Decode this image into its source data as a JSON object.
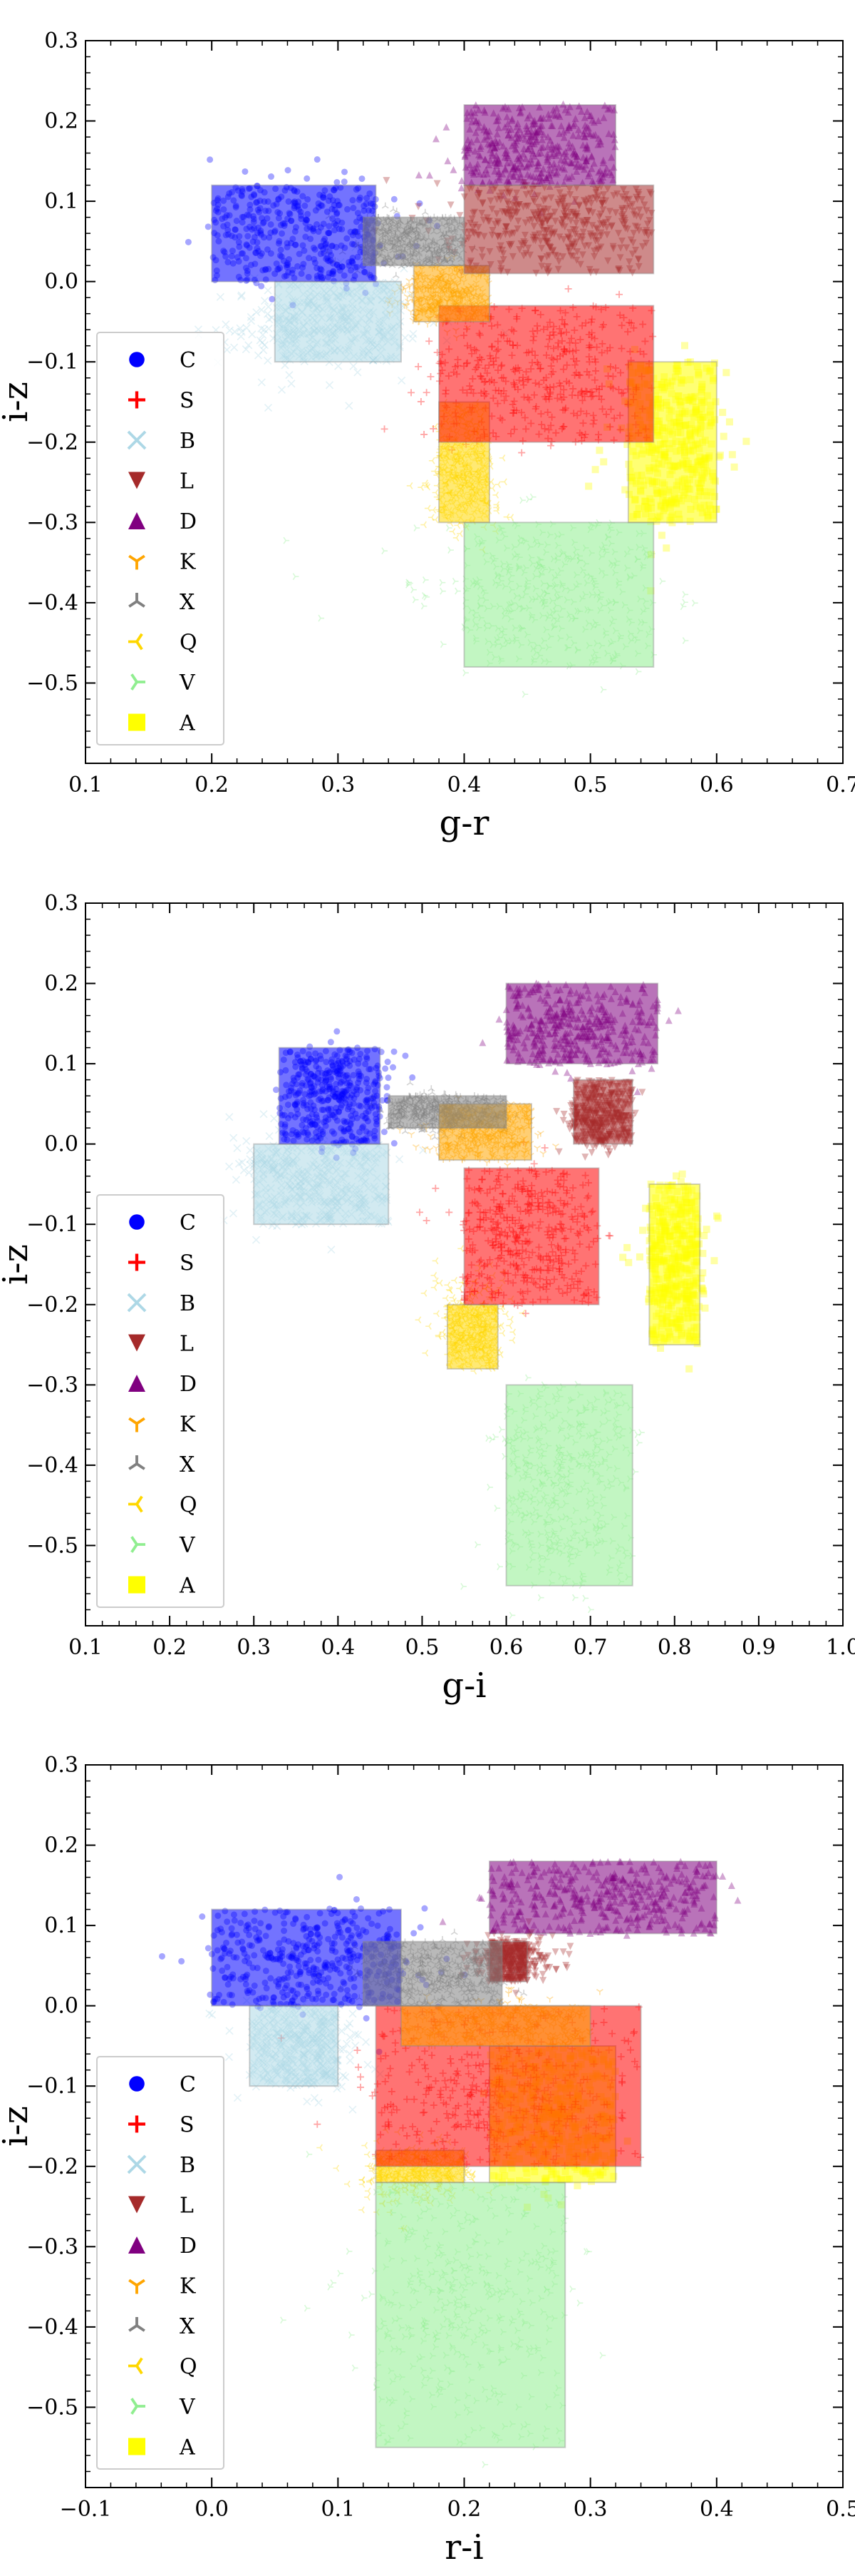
{
  "legend_items": [
    {
      "label": "C",
      "color": "#0000ff",
      "marker": "circle"
    },
    {
      "label": "S",
      "color": "#ff0000",
      "marker": "plus"
    },
    {
      "label": "B",
      "color": "#add8e6",
      "marker": "x"
    },
    {
      "label": "L",
      "color": "#a52a2a",
      "marker": "triangle-down"
    },
    {
      "label": "D",
      "color": "#800080",
      "marker": "triangle-up"
    },
    {
      "label": "K",
      "color": "#ffa500",
      "marker": "tri-down"
    },
    {
      "label": "X",
      "color": "#808080",
      "marker": "tri-up"
    },
    {
      "label": "Q",
      "color": "#ffd700",
      "marker": "tri-left"
    },
    {
      "label": "V",
      "color": "#90ee90",
      "marker": "tri-right"
    },
    {
      "label": "A",
      "color": "#ffff00",
      "marker": "square"
    }
  ],
  "chart_data": [
    {
      "type": "scatter",
      "xlabel": "g-r",
      "ylabel": "i-z",
      "xlim": [
        0.1,
        0.7
      ],
      "ylim": [
        -0.6,
        0.3
      ],
      "xticks": [
        "0.1",
        "0.2",
        "0.3",
        "0.4",
        "0.5",
        "0.6",
        "0.7"
      ],
      "yticks": [
        "0.3",
        "0.2",
        "0.1",
        "0.0",
        "−0.1",
        "−0.2",
        "−0.3",
        "−0.4",
        "−0.5"
      ],
      "legend_position": "lower-left",
      "clusters": [
        {
          "class": "V",
          "x_range": [
            0.4,
            0.55
          ],
          "y_range": [
            -0.48,
            -0.3
          ],
          "center": [
            0.46,
            -0.39
          ],
          "spread": [
            0.06,
            0.06
          ]
        },
        {
          "class": "A",
          "x_range": [
            0.53,
            0.6
          ],
          "y_range": [
            -0.3,
            -0.1
          ],
          "center": [
            0.56,
            -0.2
          ],
          "spread": [
            0.03,
            0.06
          ]
        },
        {
          "class": "Q",
          "x_range": [
            0.38,
            0.42
          ],
          "y_range": [
            -0.3,
            -0.15
          ],
          "center": [
            0.4,
            -0.25
          ],
          "spread": [
            0.02,
            0.04
          ]
        },
        {
          "class": "B",
          "x_range": [
            0.25,
            0.35
          ],
          "y_range": [
            -0.1,
            0.0
          ],
          "center": [
            0.28,
            -0.06
          ],
          "spread": [
            0.05,
            0.04
          ]
        },
        {
          "class": "C",
          "x_range": [
            0.2,
            0.33
          ],
          "y_range": [
            0.0,
            0.12
          ],
          "center": [
            0.28,
            0.06
          ],
          "spread": [
            0.05,
            0.04
          ]
        },
        {
          "class": "S",
          "x_range": [
            0.38,
            0.55
          ],
          "y_range": [
            -0.2,
            -0.03
          ],
          "center": [
            0.45,
            -0.12
          ],
          "spread": [
            0.05,
            0.05
          ]
        },
        {
          "class": "K",
          "x_range": [
            0.36,
            0.42
          ],
          "y_range": [
            -0.05,
            0.02
          ],
          "center": [
            0.38,
            -0.02
          ],
          "spread": [
            0.02,
            0.02
          ]
        },
        {
          "class": "D",
          "x_range": [
            0.4,
            0.52
          ],
          "y_range": [
            0.12,
            0.22
          ],
          "center": [
            0.45,
            0.16
          ],
          "spread": [
            0.04,
            0.03
          ]
        },
        {
          "class": "L",
          "x_range": [
            0.4,
            0.55
          ],
          "y_range": [
            0.01,
            0.12
          ],
          "center": [
            0.47,
            0.07
          ],
          "spread": [
            0.05,
            0.03
          ]
        },
        {
          "class": "X",
          "x_range": [
            0.32,
            0.4
          ],
          "y_range": [
            0.02,
            0.08
          ],
          "center": [
            0.35,
            0.05
          ],
          "spread": [
            0.025,
            0.02
          ]
        }
      ]
    },
    {
      "type": "scatter",
      "xlabel": "g-i",
      "ylabel": "i-z",
      "xlim": [
        0.1,
        1.0
      ],
      "ylim": [
        -0.6,
        0.3
      ],
      "xticks": [
        "0.1",
        "0.2",
        "0.3",
        "0.4",
        "0.5",
        "0.6",
        "0.7",
        "0.8",
        "0.9",
        "1.0"
      ],
      "yticks": [
        "0.3",
        "0.2",
        "0.1",
        "0.0",
        "−0.1",
        "−0.2",
        "−0.3",
        "−0.4",
        "−0.5"
      ],
      "legend_position": "lower-left",
      "clusters": [
        {
          "class": "V",
          "x_range": [
            0.6,
            0.75
          ],
          "y_range": [
            -0.55,
            -0.3
          ],
          "center": [
            0.66,
            -0.42
          ],
          "spread": [
            0.05,
            0.08
          ]
        },
        {
          "class": "A",
          "x_range": [
            0.77,
            0.83
          ],
          "y_range": [
            -0.25,
            -0.05
          ],
          "center": [
            0.8,
            -0.14
          ],
          "spread": [
            0.025,
            0.06
          ]
        },
        {
          "class": "Q",
          "x_range": [
            0.53,
            0.59
          ],
          "y_range": [
            -0.28,
            -0.2
          ],
          "center": [
            0.56,
            -0.22
          ],
          "spread": [
            0.03,
            0.04
          ]
        },
        {
          "class": "B",
          "x_range": [
            0.3,
            0.46
          ],
          "y_range": [
            -0.1,
            0.0
          ],
          "center": [
            0.36,
            -0.04
          ],
          "spread": [
            0.06,
            0.04
          ]
        },
        {
          "class": "C",
          "x_range": [
            0.33,
            0.45
          ],
          "y_range": [
            0.0,
            0.12
          ],
          "center": [
            0.4,
            0.06
          ],
          "spread": [
            0.04,
            0.04
          ]
        },
        {
          "class": "S",
          "x_range": [
            0.55,
            0.71
          ],
          "y_range": [
            -0.2,
            -0.03
          ],
          "center": [
            0.62,
            -0.11
          ],
          "spread": [
            0.05,
            0.05
          ]
        },
        {
          "class": "K",
          "x_range": [
            0.52,
            0.63
          ],
          "y_range": [
            -0.02,
            0.05
          ],
          "center": [
            0.57,
            0.01
          ],
          "spread": [
            0.04,
            0.02
          ]
        },
        {
          "class": "D",
          "x_range": [
            0.6,
            0.78
          ],
          "y_range": [
            0.1,
            0.2
          ],
          "center": [
            0.68,
            0.14
          ],
          "spread": [
            0.05,
            0.03
          ]
        },
        {
          "class": "L",
          "x_range": [
            0.68,
            0.75
          ],
          "y_range": [
            0.0,
            0.08
          ],
          "center": [
            0.71,
            0.03
          ],
          "spread": [
            0.025,
            0.025
          ]
        },
        {
          "class": "X",
          "x_range": [
            0.46,
            0.6
          ],
          "y_range": [
            0.02,
            0.06
          ],
          "center": [
            0.52,
            0.04
          ],
          "spread": [
            0.04,
            0.015
          ]
        }
      ]
    },
    {
      "type": "scatter",
      "xlabel": "r-i",
      "ylabel": "i-z",
      "xlim": [
        -0.1,
        0.5
      ],
      "ylim": [
        -0.6,
        0.3
      ],
      "xticks": [
        "−0.1",
        "0.0",
        "0.1",
        "0.2",
        "0.3",
        "0.4",
        "0.5"
      ],
      "yticks": [
        "0.3",
        "0.2",
        "0.1",
        "0.0",
        "−0.1",
        "−0.2",
        "−0.3",
        "−0.4",
        "−0.5"
      ],
      "legend_position": "lower-left",
      "clusters": [
        {
          "class": "V",
          "x_range": [
            0.13,
            0.28
          ],
          "y_range": [
            -0.55,
            -0.22
          ],
          "center": [
            0.2,
            -0.36
          ],
          "spread": [
            0.06,
            0.09
          ]
        },
        {
          "class": "A",
          "x_range": [
            0.22,
            0.32
          ],
          "y_range": [
            -0.22,
            -0.05
          ],
          "center": [
            0.27,
            -0.14
          ],
          "spread": [
            0.03,
            0.05
          ]
        },
        {
          "class": "Q",
          "x_range": [
            0.13,
            0.2
          ],
          "y_range": [
            -0.22,
            -0.18
          ],
          "center": [
            0.16,
            -0.21
          ],
          "spread": [
            0.03,
            0.03
          ]
        },
        {
          "class": "B",
          "x_range": [
            0.03,
            0.1
          ],
          "y_range": [
            -0.1,
            0.0
          ],
          "center": [
            0.07,
            -0.05
          ],
          "spread": [
            0.03,
            0.035
          ]
        },
        {
          "class": "C",
          "x_range": [
            0.0,
            0.15
          ],
          "y_range": [
            0.0,
            0.12
          ],
          "center": [
            0.08,
            0.06
          ],
          "spread": [
            0.05,
            0.04
          ]
        },
        {
          "class": "S",
          "x_range": [
            0.13,
            0.34
          ],
          "y_range": [
            -0.2,
            0.0
          ],
          "center": [
            0.22,
            -0.1
          ],
          "spread": [
            0.06,
            0.05
          ]
        },
        {
          "class": "K",
          "x_range": [
            0.15,
            0.3
          ],
          "y_range": [
            -0.05,
            0.0
          ],
          "center": [
            0.23,
            -0.02
          ],
          "spread": [
            0.04,
            0.02
          ]
        },
        {
          "class": "D",
          "x_range": [
            0.22,
            0.4
          ],
          "y_range": [
            0.09,
            0.18
          ],
          "center": [
            0.31,
            0.13
          ],
          "spread": [
            0.05,
            0.03
          ]
        },
        {
          "class": "L",
          "x_range": [
            0.22,
            0.25
          ],
          "y_range": [
            0.03,
            0.08
          ],
          "center": [
            0.24,
            0.06
          ],
          "spread": [
            0.02,
            0.02
          ]
        },
        {
          "class": "X",
          "x_range": [
            0.12,
            0.23
          ],
          "y_range": [
            0.0,
            0.08
          ],
          "center": [
            0.18,
            0.04
          ],
          "spread": [
            0.04,
            0.025
          ]
        }
      ]
    }
  ]
}
